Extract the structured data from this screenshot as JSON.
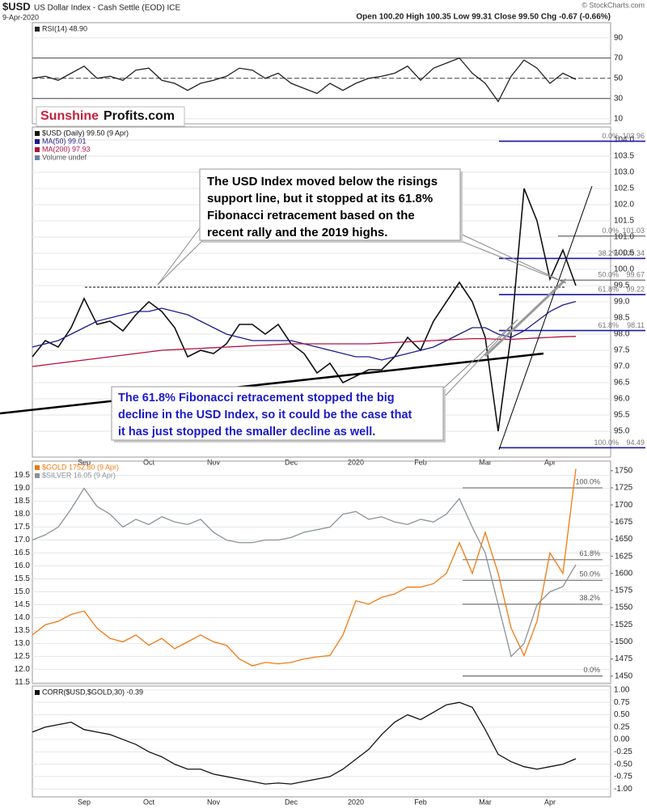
{
  "header": {
    "title": "$USD",
    "subtitle": "US Dollar Index - Cash Settle (EOD) ICE",
    "date": "9-Apr-2020",
    "quote": "Open 100.20 High 100.35 Low 99.31 Close 99.50 Chg -0.67 (-0.66%)",
    "credit": "© StockCharts.com"
  },
  "logo": {
    "part1": "Sunshine",
    "part2": "Profits.com"
  },
  "chart_data": [
    {
      "type": "line",
      "ylim": [
        5,
        105
      ],
      "yticks": [
        90,
        70,
        50,
        30,
        10
      ],
      "grid": true,
      "ref_lines": [
        {
          "value": 70,
          "style": "solid"
        },
        {
          "value": 50,
          "style": "dashed"
        },
        {
          "value": 30,
          "style": "solid"
        }
      ],
      "series": [
        {
          "name": "RSI(14) 48.90",
          "color": "#222222",
          "values": [
            50,
            52,
            48,
            55,
            62,
            50,
            52,
            48,
            58,
            60,
            48,
            45,
            38,
            45,
            48,
            52,
            60,
            58,
            50,
            55,
            45,
            40,
            35,
            45,
            38,
            45,
            50,
            52,
            55,
            62,
            48,
            60,
            65,
            70,
            55,
            45,
            27,
            52,
            68,
            60,
            45,
            55,
            48.9
          ]
        }
      ]
    },
    {
      "type": "line",
      "ylim": [
        94.2,
        104.4
      ],
      "grid": true,
      "categories": [
        null,
        null,
        null,
        null,
        "Sep",
        null,
        null,
        null,
        null,
        "Oct",
        null,
        null,
        null,
        null,
        "Nov",
        null,
        null,
        null,
        null,
        null,
        "Dec",
        null,
        null,
        null,
        null,
        "2020",
        null,
        null,
        null,
        null,
        "Feb",
        null,
        null,
        null,
        null,
        "Mar",
        null,
        null,
        null,
        null,
        "Apr",
        null,
        null
      ],
      "yticks": [
        {
          "value": 104,
          "label": "104.0"
        },
        103.5,
        {
          "value": 103,
          "label": "103.0"
        },
        102.5,
        {
          "value": 102,
          "label": "102.0"
        },
        101.5,
        {
          "value": 101,
          "label": "101.0"
        },
        100.5,
        {
          "value": 100,
          "label": "100.0"
        },
        99.5,
        {
          "value": 99,
          "label": "99.0"
        },
        98.5,
        {
          "value": 98,
          "label": "98.0"
        },
        97.5,
        {
          "value": 97,
          "label": "97.0"
        },
        96.5,
        {
          "value": 96,
          "label": "96.0"
        },
        95.5,
        {
          "value": 95,
          "label": "95.0"
        }
      ],
      "series": [
        {
          "name": "$USD (Daily) 99.50 (9 Apr)",
          "color": "#111111",
          "values": [
            97.3,
            97.8,
            97.6,
            98.2,
            99.1,
            98.3,
            98.4,
            98.1,
            98.6,
            99.0,
            98.7,
            98.2,
            97.3,
            97.5,
            97.4,
            97.7,
            98.3,
            98.3,
            98.0,
            98.3,
            97.7,
            97.4,
            96.8,
            97.1,
            96.5,
            96.7,
            96.9,
            96.9,
            97.3,
            97.9,
            97.5,
            98.4,
            99.0,
            99.6,
            99.0,
            97.9,
            95.0,
            98.0,
            102.5,
            101.5,
            99.7,
            100.6,
            99.5
          ]
        },
        {
          "name": "MA(50) 99.01",
          "color": "#1c1c8c",
          "values": [
            97.6,
            97.7,
            97.8,
            98.0,
            98.2,
            98.4,
            98.5,
            98.6,
            98.7,
            98.7,
            98.8,
            98.7,
            98.6,
            98.4,
            98.2,
            98.0,
            97.9,
            97.8,
            97.8,
            97.8,
            97.8,
            97.7,
            97.6,
            97.5,
            97.4,
            97.3,
            97.3,
            97.2,
            97.3,
            97.4,
            97.5,
            97.6,
            97.8,
            98.0,
            98.2,
            98.2,
            98.0,
            97.9,
            98.1,
            98.4,
            98.7,
            98.9,
            99.01
          ]
        },
        {
          "name": "MA(200) 97.93",
          "color": "#b3123e",
          "values": [
            97.0,
            97.05,
            97.1,
            97.15,
            97.2,
            97.25,
            97.3,
            97.35,
            97.4,
            97.45,
            97.5,
            97.52,
            97.54,
            97.56,
            97.58,
            97.6,
            97.62,
            97.64,
            97.66,
            97.68,
            97.7,
            97.7,
            97.7,
            97.7,
            97.7,
            97.7,
            97.7,
            97.72,
            97.74,
            97.76,
            97.78,
            97.8,
            97.82,
            97.84,
            97.86,
            97.86,
            97.84,
            97.84,
            97.86,
            97.88,
            97.9,
            97.92,
            97.93
          ]
        }
      ],
      "legend_notes": [
        "Volume undef"
      ],
      "fib_levels": [
        {
          "name": "0.0%",
          "value": 103.96,
          "color": "#1a1aa8"
        },
        {
          "name": "0.0%",
          "value": 101.03,
          "color": "#333333"
        },
        {
          "name": "38.2%",
          "value": 100.34,
          "color": "#1a1aa8"
        },
        {
          "name": "50.0%",
          "value": 99.67,
          "color": "#333333"
        },
        {
          "name": "61.8%",
          "value": 99.22,
          "color": "#1a1aa8"
        },
        {
          "name": "61.8%",
          "value": 98.11,
          "color": "#1a1aa8"
        },
        {
          "name": "100.0%",
          "value": 94.49,
          "color": "#1a1aa8"
        }
      ],
      "annotations": [
        [
          "The USD Index moved below the risings",
          "support line, but it stopped at its 61.8%",
          "Fibonacci retracement based on the",
          "recent rally and the 2019 highs."
        ],
        [
          "The 61.8% Fibonacci retracement stopped the big",
          "decline in the USD Index, so it could be the case that",
          "it has just stopped the smaller decline as well."
        ]
      ]
    },
    {
      "type": "line",
      "ylim": [
        11.45,
        20.05
      ],
      "y2lim": [
        1439,
        1764
      ],
      "grid": true,
      "yticks": [
        19.5,
        {
          "value": 19,
          "label": "19.0"
        },
        18.5,
        {
          "value": 18,
          "label": "18.0"
        },
        17.5,
        {
          "value": 17,
          "label": "17.0"
        },
        16.5,
        {
          "value": 16,
          "label": "16.0"
        },
        15.5,
        {
          "value": 15,
          "label": "15.0"
        },
        14.5,
        {
          "value": 14,
          "label": "14.0"
        },
        13.5,
        {
          "value": 13,
          "label": "13.0"
        },
        12.5,
        {
          "value": 12,
          "label": "12.0"
        },
        11.5
      ],
      "y2ticks": [
        1750,
        1725,
        1700,
        1675,
        1650,
        1625,
        1600,
        1575,
        1550,
        1525,
        1500,
        1475,
        1450
      ],
      "series": [
        {
          "name": "$GOLD 1752.80 (9 Apr)",
          "color": "#f07a12",
          "axis": "y2",
          "values": [
            1510,
            1525,
            1530,
            1540,
            1545,
            1520,
            1505,
            1500,
            1510,
            1495,
            1505,
            1490,
            1500,
            1510,
            1500,
            1495,
            1475,
            1465,
            1470,
            1468,
            1470,
            1475,
            1478,
            1480,
            1510,
            1560,
            1555,
            1565,
            1570,
            1580,
            1580,
            1585,
            1600,
            1645,
            1600,
            1660,
            1600,
            1520,
            1480,
            1530,
            1630,
            1600,
            1752.8
          ]
        },
        {
          "name": "$SILVER 16.05 (9 Apr)",
          "color": "#8a9399",
          "values": [
            17.0,
            17.2,
            17.5,
            18.2,
            19.0,
            18.3,
            18.0,
            17.5,
            17.8,
            17.6,
            17.9,
            17.7,
            17.6,
            17.8,
            17.3,
            17.0,
            16.9,
            16.9,
            17.0,
            17.0,
            17.1,
            17.3,
            17.4,
            17.5,
            18.0,
            18.1,
            17.8,
            17.9,
            17.7,
            17.6,
            17.8,
            17.7,
            18.0,
            18.6,
            17.5,
            16.5,
            14.5,
            12.5,
            13.0,
            14.5,
            15.0,
            15.2,
            16.05
          ]
        }
      ],
      "fib_levels": [
        {
          "name": "100.0%",
          "value": 1725,
          "color": "#333333"
        },
        {
          "name": "61.8%",
          "value": 1620,
          "color": "#333333"
        },
        {
          "name": "50.0%",
          "value": 1590,
          "color": "#333333"
        },
        {
          "name": "38.2%",
          "value": 1555,
          "color": "#333333"
        },
        {
          "name": "0.0%",
          "value": 1450,
          "color": "#333333"
        }
      ]
    },
    {
      "type": "line",
      "ylim": [
        -1.16,
        1.08
      ],
      "grid": true,
      "categories": [
        null,
        null,
        null,
        null,
        "Sep",
        null,
        null,
        null,
        null,
        "Oct",
        null,
        null,
        null,
        null,
        "Nov",
        null,
        null,
        null,
        null,
        null,
        "Dec",
        null,
        null,
        null,
        null,
        "2020",
        null,
        null,
        null,
        null,
        "Feb",
        null,
        null,
        null,
        null,
        "Mar",
        null,
        null,
        null,
        null,
        "Apr",
        null,
        null
      ],
      "yticks": [
        {
          "value": 1,
          "label": "1.00"
        },
        0.75,
        {
          "value": 0.5,
          "label": "0.50"
        },
        0.25,
        {
          "value": 0,
          "label": "0.00"
        },
        -0.25,
        {
          "value": -0.5,
          "label": "-0.50"
        },
        -0.75,
        {
          "value": -1,
          "label": "-1.00"
        }
      ],
      "series": [
        {
          "name": "CORR($USD,$GOLD,30) -0.39",
          "color": "#111111",
          "values": [
            0.15,
            0.25,
            0.3,
            0.35,
            0.2,
            0.15,
            0.1,
            0.0,
            -0.1,
            -0.25,
            -0.35,
            -0.5,
            -0.6,
            -0.6,
            -0.7,
            -0.75,
            -0.8,
            -0.85,
            -0.9,
            -0.88,
            -0.9,
            -0.85,
            -0.8,
            -0.75,
            -0.6,
            -0.4,
            -0.2,
            0.1,
            0.35,
            0.5,
            0.4,
            0.55,
            0.7,
            0.75,
            0.65,
            0.2,
            -0.3,
            -0.45,
            -0.55,
            -0.6,
            -0.55,
            -0.5,
            -0.39
          ]
        }
      ]
    }
  ]
}
